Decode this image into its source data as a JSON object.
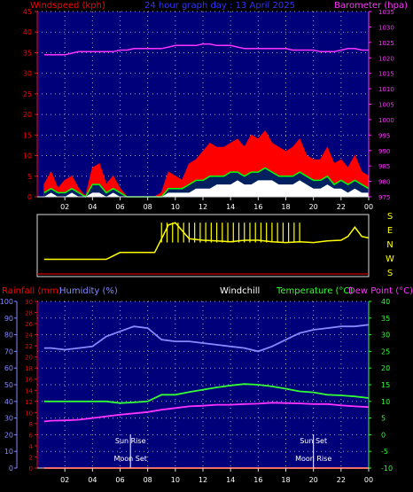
{
  "header": {
    "left": "Windspeed (kph)",
    "center": "24 hour graph day : 13 April 2025",
    "right": "Barometer (hpa)"
  },
  "bottom_header": {
    "rainfall": "Rainfall (mm)",
    "humidity": "Humidity (%)",
    "windchill": "Windchill",
    "temperature": "Temperature (°C)",
    "dewpoint": "Dew Point (°C)"
  },
  "direction_labels": [
    "S",
    "E",
    "N",
    "W",
    "S"
  ],
  "astro": {
    "sun_rise": "Sun Rise",
    "moon_set": "Moon Set",
    "sun_set": "Sun Set",
    "moon_rise": "Moon Rise"
  },
  "colors": {
    "windspeed": "#ff0000",
    "gust_max": "#ff0000",
    "wind_avg": "#00ff00",
    "wind_low": "#ffffff",
    "wind_dir": "#ffff00",
    "barometer": "#ff33ff",
    "humidity": "#8888ff",
    "temperature": "#33ff33",
    "dewpoint": "#ff33ff",
    "rainfall": "#ff0000",
    "plot_bg": "#00007a"
  },
  "chart_data": [
    {
      "type": "area",
      "title": "24 hour graph day : 13 April 2025",
      "xlabel": "",
      "ylabel": "Windspeed (kph)",
      "y2label": "Barometer (hpa)",
      "x_ticks": [
        "02",
        "04",
        "06",
        "08",
        "10",
        "12",
        "14",
        "16",
        "18",
        "20",
        "22",
        "00"
      ],
      "ylim": [
        0,
        45
      ],
      "y_ticks": [
        0,
        5,
        10,
        15,
        20,
        25,
        30,
        35,
        40,
        45
      ],
      "y2lim": [
        975,
        1035
      ],
      "y2_ticks": [
        975,
        980,
        985,
        990,
        995,
        1000,
        1005,
        1010,
        1015,
        1020,
        1025,
        1030,
        1035
      ],
      "hours": [
        0.5,
        1,
        1.5,
        2,
        2.5,
        3,
        3.5,
        4,
        4.5,
        5,
        5.5,
        6,
        6.5,
        7,
        7.5,
        8,
        8.5,
        9,
        9.5,
        10,
        10.5,
        11,
        11.5,
        12,
        12.5,
        13,
        13.5,
        14,
        14.5,
        15,
        15.5,
        16,
        16.5,
        17,
        17.5,
        18,
        18.5,
        19,
        19.5,
        20,
        20.5,
        21,
        21.5,
        22,
        22.5,
        23,
        23.5,
        24
      ],
      "series": [
        {
          "name": "Windspeed (kph)",
          "values": [
            3,
            6,
            2,
            4,
            5,
            2,
            0,
            7,
            8,
            3,
            5,
            2,
            0,
            0,
            0,
            0,
            0,
            1,
            6,
            5,
            4,
            8,
            9,
            11,
            13,
            12,
            12,
            13,
            14,
            12,
            15,
            14,
            16,
            13,
            12,
            11,
            12,
            14,
            10,
            9,
            9,
            12,
            8,
            9,
            7,
            10,
            6,
            5
          ]
        },
        {
          "name": "wind_avg",
          "values": [
            1,
            2,
            1,
            1,
            2,
            1,
            0,
            3,
            3,
            1,
            2,
            1,
            0,
            0,
            0,
            0,
            0,
            0,
            2,
            2,
            2,
            3,
            4,
            4,
            5,
            5,
            5,
            6,
            6,
            5,
            6,
            6,
            7,
            6,
            5,
            5,
            5,
            6,
            5,
            4,
            4,
            5,
            3,
            4,
            3,
            4,
            3,
            2
          ]
        },
        {
          "name": "wind_low",
          "values": [
            0,
            1,
            0,
            0,
            1,
            0,
            0,
            1,
            1,
            0,
            1,
            0,
            0,
            0,
            0,
            0,
            0,
            0,
            1,
            1,
            1,
            1,
            2,
            2,
            2,
            3,
            3,
            3,
            4,
            3,
            3,
            4,
            4,
            4,
            3,
            3,
            3,
            4,
            3,
            2,
            2,
            3,
            2,
            2,
            1,
            2,
            1,
            1
          ]
        },
        {
          "name": "Barometer (hpa)",
          "values": [
            1021,
            1021,
            1021,
            1021,
            1021.5,
            1022,
            1022,
            1022,
            1022,
            1022,
            1022,
            1022.5,
            1022.5,
            1023,
            1023,
            1023,
            1023,
            1023,
            1023.5,
            1024,
            1024,
            1024,
            1024,
            1024.5,
            1024.5,
            1024,
            1024,
            1024,
            1023.5,
            1023,
            1023,
            1023,
            1023,
            1023,
            1023,
            1023,
            1022.5,
            1022.5,
            1022.5,
            1022.5,
            1022,
            1022,
            1022,
            1022.5,
            1023,
            1023,
            1022.5,
            1022.5
          ]
        }
      ]
    },
    {
      "type": "line",
      "title": "",
      "ylabel": "",
      "y_categories": [
        "S",
        "E",
        "N",
        "W",
        "S"
      ],
      "hours": [
        0.5,
        1,
        2,
        3,
        4,
        5,
        6,
        6.5,
        7,
        7.5,
        8,
        8.5,
        9,
        9.5,
        10,
        11,
        12,
        13,
        14,
        15,
        16,
        17,
        18,
        19,
        20,
        21,
        22,
        22.5,
        23,
        23.5,
        24
      ],
      "series": [
        {
          "name": "direction_deg",
          "values": [
            90,
            90,
            90,
            90,
            90,
            90,
            135,
            135,
            135,
            135,
            135,
            135,
            225,
            315,
            330,
            225,
            215,
            210,
            205,
            215,
            215,
            205,
            200,
            205,
            200,
            210,
            215,
            240,
            300,
            240,
            230
          ]
        }
      ]
    },
    {
      "type": "line",
      "title": "",
      "xlabel": "",
      "x_ticks": [
        "02",
        "04",
        "06",
        "08",
        "10",
        "12",
        "14",
        "16",
        "18",
        "20",
        "22",
        "00"
      ],
      "axes": {
        "rainfall": {
          "label": "Rainfall (mm)",
          "range": [
            0,
            30
          ],
          "ticks": [
            0,
            2,
            4,
            6,
            8,
            10,
            12,
            14,
            16,
            18,
            20,
            22,
            24,
            26,
            28,
            30
          ]
        },
        "humidity": {
          "label": "Humidity (%)",
          "range": [
            0,
            100
          ],
          "ticks": [
            0,
            10,
            20,
            30,
            40,
            50,
            60,
            70,
            80,
            90,
            100
          ]
        },
        "temperature": {
          "label": "Temperature (°C)",
          "range": [
            -10,
            40
          ],
          "ticks": [
            -10,
            -5,
            0,
            5,
            10,
            15,
            20,
            25,
            30,
            35,
            40
          ]
        }
      },
      "hours": [
        0.5,
        1,
        2,
        3,
        4,
        5,
        6,
        7,
        8,
        9,
        10,
        11,
        12,
        13,
        14,
        15,
        16,
        17,
        18,
        19,
        20,
        21,
        22,
        23,
        24
      ],
      "series": [
        {
          "name": "Humidity (%)",
          "axis": "humidity",
          "values": [
            72,
            72,
            71,
            72,
            73,
            79,
            82,
            85,
            84,
            77,
            76,
            76,
            75,
            74,
            73,
            72,
            70,
            73,
            77,
            81,
            83,
            84,
            85,
            85,
            86
          ]
        },
        {
          "name": "Temperature (°C)",
          "axis": "temperature",
          "values": [
            10,
            10,
            10,
            10,
            10,
            10,
            9.5,
            9.7,
            10,
            12,
            12,
            12.8,
            13.5,
            14.2,
            14.8,
            15.2,
            15,
            14.5,
            13.8,
            13,
            12.7,
            12,
            11.8,
            11.5,
            11
          ]
        },
        {
          "name": "Dew Point (°C)",
          "axis": "temperature",
          "values": [
            4,
            4.2,
            4.3,
            4.5,
            5,
            5.5,
            6,
            6.4,
            6.8,
            7.5,
            8,
            8.5,
            8.7,
            9,
            9,
            9.2,
            9.3,
            9.6,
            9.5,
            9.4,
            9.2,
            9.2,
            8.8,
            8.5,
            8.3
          ]
        },
        {
          "name": "Rainfall (mm)",
          "axis": "rainfall",
          "values": [
            0,
            0,
            0,
            0,
            0,
            0,
            0,
            0,
            0,
            0,
            0,
            0,
            0,
            0,
            0,
            0,
            0,
            0,
            0,
            0,
            0,
            0,
            0,
            0,
            0
          ]
        }
      ],
      "events": [
        {
          "label": "Sun Rise",
          "hour": 6.75
        },
        {
          "label": "Moon Set",
          "hour": 6.75
        },
        {
          "label": "Sun Set",
          "hour": 20.0
        },
        {
          "label": "Moon Rise",
          "hour": 20.0
        }
      ]
    }
  ]
}
